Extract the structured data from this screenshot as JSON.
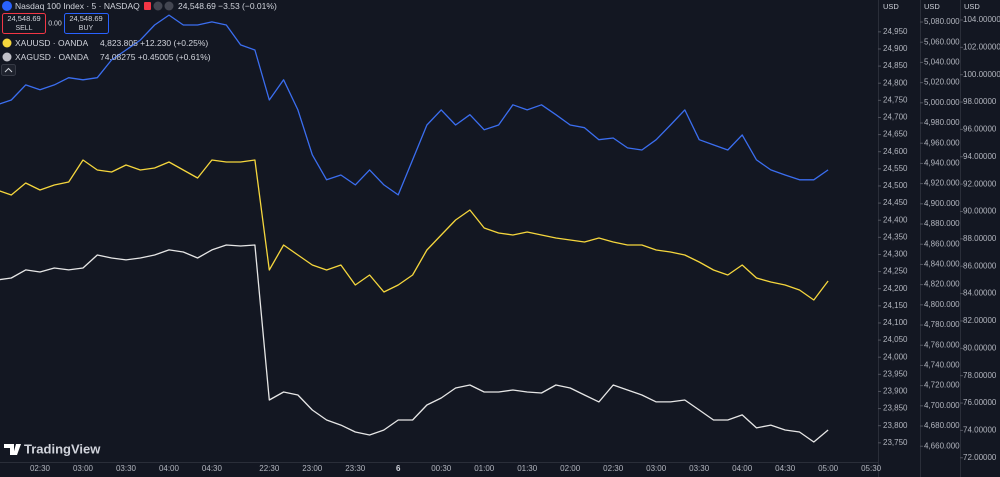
{
  "ui": {
    "sell_price": "24,548.69",
    "sell_label": "SELL",
    "spread": "0.00",
    "buy_price": "24,548.69",
    "buy_label": "BUY",
    "axis_units": [
      "USD",
      "USD",
      "USD"
    ],
    "logo": "TradingView"
  },
  "chart_data": {
    "type": "line",
    "categories": [
      null,
      null,
      null,
      "02:30",
      null,
      null,
      "03:00",
      null,
      null,
      "03:30",
      null,
      null,
      "04:00",
      null,
      null,
      "04:30",
      null,
      null,
      null,
      "22:30",
      null,
      null,
      "23:00",
      null,
      null,
      "23:30",
      null,
      null,
      "6",
      null,
      null,
      "00:30",
      null,
      null,
      "01:00",
      null,
      null,
      "01:30",
      null,
      null,
      "02:00",
      null,
      null,
      "02:30",
      null,
      null,
      "03:00",
      null,
      null,
      "03:30",
      null,
      null,
      "04:00",
      null,
      null,
      "04:30",
      null,
      null,
      "05:00",
      null,
      null,
      "05:30"
    ],
    "series": [
      {
        "name": "Nasdaq 100 Index · 5 · NASDAQ",
        "quote": "24,548.69 −3.53 (−0.01%)",
        "color": "#3b6ef0",
        "axis": "y",
        "values": [
          24737,
          24751,
          24795,
          24781,
          24795,
          24816,
          24810,
          24816,
          24868,
          24897,
          24926,
          24970,
          24999,
          24970,
          24970,
          24979,
          24970,
          24912,
          24897,
          24751,
          24810,
          24722,
          24591,
          24518,
          24532,
          24503,
          24547,
          24503,
          24474,
          24576,
          24678,
          24722,
          24678,
          24708,
          24664,
          24678,
          24737,
          24722,
          24737,
          24708,
          24678,
          24670,
          24635,
          24640,
          24611,
          24605,
          24635,
          24678,
          24722,
          24635,
          24620,
          24605,
          24649,
          24576,
          24547,
          24532,
          24518,
          24518,
          24547,
          null,
          null,
          null
        ]
      },
      {
        "name": "XAUUSD · OANDA",
        "quote": "4,823.805 +12.230 (+0.25%)",
        "color": "#f5d63d",
        "axis": "y2",
        "values": [
          4913.7,
          4908.7,
          4920.6,
          4913.7,
          4918.6,
          4921.6,
          4943.4,
          4933.5,
          4931.5,
          4938.4,
          4933.5,
          4935.5,
          4941.4,
          4933.5,
          4925.6,
          4943.4,
          4941.4,
          4941.4,
          4943.4,
          4834.5,
          4859.2,
          4849.3,
          4839.4,
          4834.5,
          4839.4,
          4819.6,
          4829.5,
          4812.7,
          4819.6,
          4829.5,
          4854.3,
          4869.1,
          4884.0,
          4893.9,
          4876.1,
          4871.1,
          4869.1,
          4872.1,
          4869.1,
          4866.2,
          4864.2,
          4862.2,
          4866.2,
          4862.2,
          4859.2,
          4859.2,
          4854.3,
          4852.3,
          4849.3,
          4842.4,
          4834.5,
          4829.5,
          4839.4,
          4826.6,
          4822.6,
          4819.6,
          4814.7,
          4804.8,
          4823.6,
          null,
          null,
          null
        ]
      },
      {
        "name": "XAGUSD · OANDA",
        "quote": "74.08275 +0.45005 (+0.61%)",
        "color": "#e6e6e6",
        "axis": "y3",
        "values": [
          84.99,
          85.14,
          85.73,
          85.58,
          85.87,
          85.73,
          85.87,
          86.82,
          86.6,
          86.46,
          86.6,
          86.82,
          87.19,
          87.04,
          86.6,
          87.19,
          87.55,
          87.48,
          87.55,
          76.22,
          76.81,
          76.59,
          75.49,
          74.76,
          74.39,
          73.88,
          73.66,
          74.03,
          74.76,
          74.76,
          75.86,
          76.37,
          77.1,
          77.32,
          76.81,
          76.81,
          76.95,
          76.81,
          76.73,
          77.32,
          77.1,
          76.59,
          76.08,
          77.32,
          76.95,
          76.59,
          76.08,
          76.08,
          76.22,
          75.49,
          74.76,
          74.76,
          75.13,
          74.18,
          74.39,
          74.03,
          73.88,
          73.15,
          74.03,
          null,
          null,
          null
        ]
      }
    ],
    "ylim": [
      23694,
      25043
    ],
    "yticks": [
      {
        "value": 23750,
        "label": "23,750"
      },
      {
        "value": 23800,
        "label": "23,800"
      },
      {
        "value": 23850,
        "label": "23,850"
      },
      {
        "value": 23900,
        "label": "23,900"
      },
      {
        "value": 23950,
        "label": "23,950"
      },
      {
        "value": 24000,
        "label": "24,000"
      },
      {
        "value": 24050,
        "label": "24,050"
      },
      {
        "value": 24100,
        "label": "24,100"
      },
      {
        "value": 24150,
        "label": "24,150"
      },
      {
        "value": 24200,
        "label": "24,200"
      },
      {
        "value": 24250,
        "label": "24,250"
      },
      {
        "value": 24300,
        "label": "24,300"
      },
      {
        "value": 24350,
        "label": "24,350"
      },
      {
        "value": 24400,
        "label": "24,400"
      },
      {
        "value": 24450,
        "label": "24,450"
      },
      {
        "value": 24500,
        "label": "24,500"
      },
      {
        "value": 24550,
        "label": "24,550"
      },
      {
        "value": 24600,
        "label": "24,600"
      },
      {
        "value": 24650,
        "label": "24,650"
      },
      {
        "value": 24700,
        "label": "24,700"
      },
      {
        "value": 24750,
        "label": "24,750"
      },
      {
        "value": 24800,
        "label": "24,800"
      },
      {
        "value": 24850,
        "label": "24,850"
      },
      {
        "value": 24900,
        "label": "24,900"
      },
      {
        "value": 24950,
        "label": "24,950"
      }
    ],
    "y2lim": [
      4644.4,
      5101.8
    ],
    "y2ticks": [
      {
        "value": 4660,
        "label": "4,660.000"
      },
      {
        "value": 4680,
        "label": "4,680.000"
      },
      {
        "value": 4700,
        "label": "4,700.000"
      },
      {
        "value": 4720,
        "label": "4,720.000"
      },
      {
        "value": 4740,
        "label": "4,740.000"
      },
      {
        "value": 4760,
        "label": "4,760.000"
      },
      {
        "value": 4780,
        "label": "4,780.000"
      },
      {
        "value": 4800,
        "label": "4,800.000"
      },
      {
        "value": 4820,
        "label": "4,820.000"
      },
      {
        "value": 4840,
        "label": "4,840.000"
      },
      {
        "value": 4860,
        "label": "4,860.000"
      },
      {
        "value": 4880,
        "label": "4,880.000"
      },
      {
        "value": 4900,
        "label": "4,900.000"
      },
      {
        "value": 4920,
        "label": "4,920.000"
      },
      {
        "value": 4940,
        "label": "4,940.000"
      },
      {
        "value": 4960,
        "label": "4,960.000"
      },
      {
        "value": 4980,
        "label": "4,980.000"
      },
      {
        "value": 5000,
        "label": "5,000.000"
      },
      {
        "value": 5020,
        "label": "5,020.000"
      },
      {
        "value": 5040,
        "label": "5,040.000"
      },
      {
        "value": 5060,
        "label": "5,060.000"
      },
      {
        "value": 5080,
        "label": "5,080.000"
      }
    ],
    "y3lim": [
      71.69,
      105.46
    ],
    "y3ticks": [
      {
        "value": 72,
        "label": "72.00000"
      },
      {
        "value": 74,
        "label": "74.00000"
      },
      {
        "value": 76,
        "label": "76.00000"
      },
      {
        "value": 78,
        "label": "78.00000"
      },
      {
        "value": 80,
        "label": "80.00000"
      },
      {
        "value": 82,
        "label": "82.00000"
      },
      {
        "value": 84,
        "label": "84.00000"
      },
      {
        "value": 86,
        "label": "86.00000"
      },
      {
        "value": 88,
        "label": "88.00000"
      },
      {
        "value": 90,
        "label": "90.00000"
      },
      {
        "value": 92,
        "label": "92.00000"
      },
      {
        "value": 94,
        "label": "94.00000"
      },
      {
        "value": 96,
        "label": "96.00000"
      },
      {
        "value": 98,
        "label": "98.00000"
      },
      {
        "value": 100,
        "label": "100.00000"
      },
      {
        "value": 102,
        "label": "102.00000"
      },
      {
        "value": 104,
        "label": "104.00000"
      }
    ],
    "grid": false
  }
}
